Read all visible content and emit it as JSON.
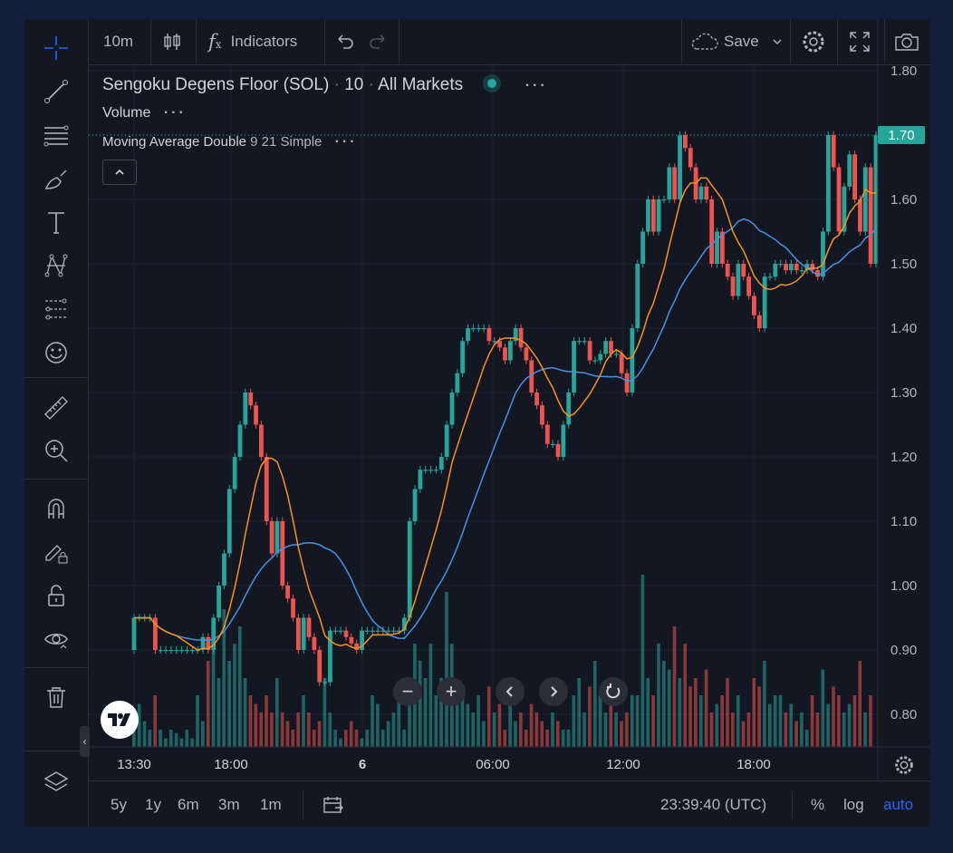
{
  "toolbar": {
    "interval": "10m",
    "indicators_label": "Indicators",
    "save_label": "Save"
  },
  "legend": {
    "symbol": "Sengoku Degens Floor (SOL)",
    "interval": "10",
    "market": "All Markets",
    "volume": "Volume",
    "ma_name": "Moving Average Double",
    "ma_params": "9 21 Simple"
  },
  "bottom": {
    "ranges": [
      "5y",
      "1y",
      "6m",
      "3m",
      "1m"
    ],
    "time": "23:39:40 (UTC)",
    "percent": "%",
    "log": "log",
    "auto": "auto"
  },
  "colors": {
    "up": "#26a69a",
    "down": "#ef5350",
    "ma_fast": "#f7931a",
    "ma_slow": "#4a90e2",
    "accent": "#2962ff"
  },
  "chart_data": {
    "type": "candlestick",
    "x_ticks": [
      "13:30",
      "18:00",
      "6",
      "06:00",
      "12:00",
      "18:00"
    ],
    "y_ticks": [
      "1.80",
      "1.70",
      "1.60",
      "1.50",
      "1.40",
      "1.30",
      "1.20",
      "1.10",
      "1.00",
      "0.90",
      "0.80"
    ],
    "ylim": [
      0.77,
      1.81
    ],
    "last_price": "1.70",
    "moving_average": {
      "fast_period": 9,
      "slow_period": 21,
      "type": "Simple"
    },
    "closes": [
      0.95,
      0.95,
      0.95,
      0.95,
      0.9,
      0.9,
      0.9,
      0.9,
      0.9,
      0.9,
      0.9,
      0.9,
      0.9,
      0.92,
      0.9,
      0.95,
      1.0,
      1.05,
      1.15,
      1.2,
      1.25,
      1.3,
      1.28,
      1.25,
      1.2,
      1.1,
      1.05,
      1.1,
      1.0,
      0.98,
      0.95,
      0.9,
      0.95,
      0.92,
      0.9,
      0.85,
      0.85,
      0.93,
      0.93,
      0.93,
      0.92,
      0.91,
      0.9,
      0.93,
      0.93,
      0.93,
      0.93,
      0.93,
      0.93,
      0.93,
      0.93,
      0.95,
      1.1,
      1.15,
      1.18,
      1.18,
      1.18,
      1.18,
      1.2,
      1.25,
      1.3,
      1.33,
      1.38,
      1.4,
      1.4,
      1.4,
      1.4,
      1.38,
      1.38,
      1.37,
      1.35,
      1.38,
      1.4,
      1.37,
      1.35,
      1.3,
      1.28,
      1.25,
      1.22,
      1.22,
      1.2,
      1.25,
      1.3,
      1.38,
      1.38,
      1.38,
      1.35,
      1.35,
      1.36,
      1.38,
      1.36,
      1.36,
      1.33,
      1.3,
      1.4,
      1.5,
      1.55,
      1.6,
      1.55,
      1.6,
      1.6,
      1.65,
      1.6,
      1.7,
      1.68,
      1.65,
      1.6,
      1.62,
      1.6,
      1.5,
      1.55,
      1.5,
      1.48,
      1.45,
      1.5,
      1.48,
      1.45,
      1.42,
      1.4,
      1.48,
      1.48,
      1.5,
      1.5,
      1.49,
      1.5,
      1.49,
      1.49,
      1.5,
      1.49,
      1.48,
      1.55,
      1.7,
      1.65,
      1.55,
      1.62,
      1.67,
      1.6,
      1.55,
      1.65,
      1.5,
      1.7
    ],
    "volumes": [
      0.2,
      0.25,
      0.15,
      0.1,
      0.3,
      0.1,
      0.05,
      0.1,
      0.08,
      0.05,
      0.1,
      0.05,
      0.3,
      0.15,
      0.5,
      0.6,
      0.4,
      0.8,
      0.5,
      0.6,
      0.7,
      0.4,
      0.3,
      0.25,
      0.2,
      0.3,
      0.2,
      0.4,
      0.2,
      0.15,
      0.1,
      0.2,
      0.3,
      0.2,
      0.1,
      0.15,
      0.4,
      0.2,
      0.1,
      0.05,
      0.1,
      0.15,
      0.1,
      0.05,
      0.1,
      0.3,
      0.25,
      0.1,
      0.15,
      0.2,
      0.3,
      0.1,
      0.4,
      0.6,
      0.5,
      0.4,
      0.6,
      0.3,
      0.4,
      0.9,
      0.6,
      0.3,
      0.35,
      0.25,
      0.2,
      0.3,
      0.15,
      0.35,
      0.2,
      0.25,
      0.1,
      0.3,
      0.15,
      0.2,
      0.1,
      0.25,
      0.2,
      0.15,
      0.1,
      0.2,
      0.15,
      0.1,
      0.1,
      0.3,
      0.4,
      0.2,
      0.35,
      0.5,
      0.3,
      0.2,
      0.4,
      0.2,
      0.15,
      0.2,
      0.3,
      0.3,
      1.0,
      0.4,
      0.3,
      0.6,
      0.5,
      0.45,
      0.7,
      0.4,
      0.6,
      0.35,
      0.4,
      0.3,
      0.45,
      0.2,
      0.25,
      0.3,
      0.4,
      0.2,
      0.3,
      0.15,
      0.2,
      0.4,
      0.35,
      0.5,
      0.25,
      0.3,
      0.3,
      0.2,
      0.25,
      0.15,
      0.2,
      0.1,
      0.3,
      0.2,
      0.45,
      0.25,
      0.35,
      0.3,
      0.2,
      0.25,
      0.3,
      0.5,
      0.2,
      0.3
    ]
  }
}
